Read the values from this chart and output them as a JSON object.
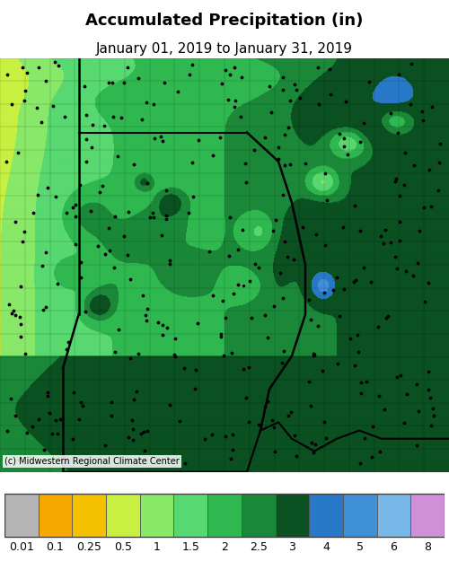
{
  "title": "Accumulated Precipitation (in)",
  "subtitle": "January 01, 2019 to January 31, 2019",
  "copyright": "(c) Midwestern Regional Climate Center",
  "colorbar_labels": [
    "0.01",
    "0.1",
    "0.25",
    "0.5",
    "1",
    "1.5",
    "2",
    "2.5",
    "3",
    "4",
    "5",
    "6",
    "8"
  ],
  "bounds": [
    0.01,
    0.1,
    0.25,
    0.5,
    1.0,
    1.5,
    2.0,
    2.5,
    3.0,
    4.0,
    5.0,
    6.0,
    8.0,
    999.0
  ],
  "colors": [
    "#b4b4b4",
    "#f5a800",
    "#f5c000",
    "#c8f040",
    "#88e868",
    "#58d870",
    "#30b850",
    "#1a8838",
    "#0a5020",
    "#2878c8",
    "#4090d8",
    "#78b8e8",
    "#d090d8"
  ],
  "title_fontsize": 13,
  "subtitle_fontsize": 11,
  "label_fontsize": 9,
  "copyright_fontsize": 7,
  "fig_bg": "#ffffff",
  "cb_bg": "#d8d8d8"
}
